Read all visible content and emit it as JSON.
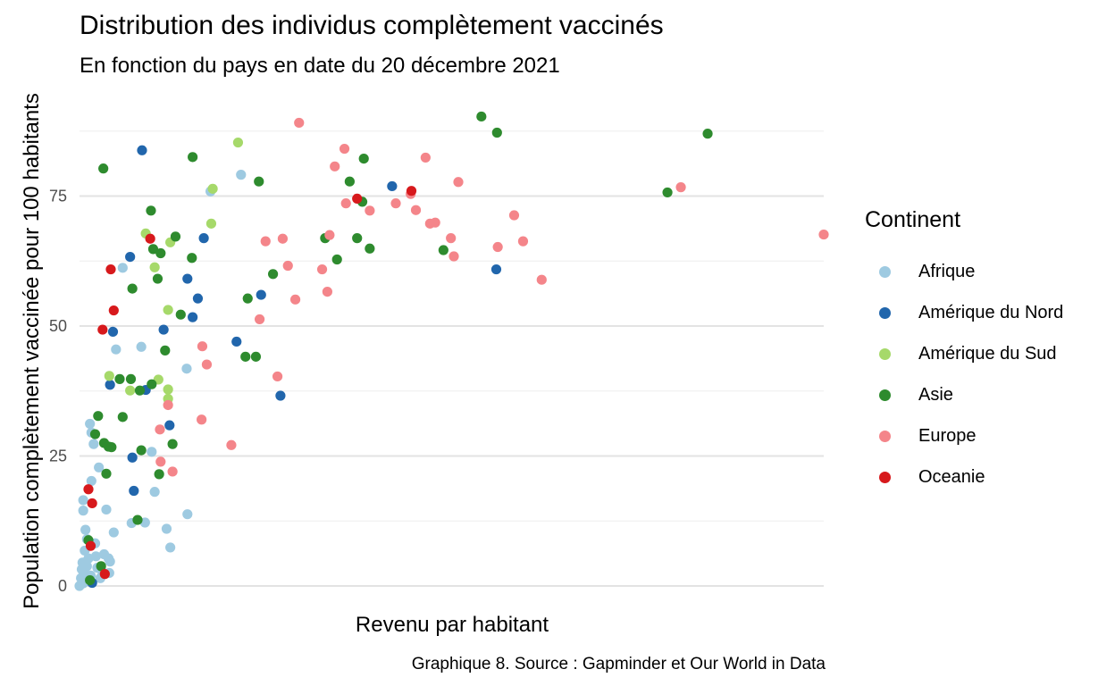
{
  "chart_data": {
    "type": "scatter",
    "title": "Distribution des individus complètement vaccinés",
    "subtitle": "En fonction du pays en date du 20 décembre 2021",
    "xlabel": "Revenu par habitant",
    "ylabel": "Population complètement vaccinée pour 100 habitants",
    "caption": "Graphique 8. Source : Gapminder et Our World in Data",
    "legend_title": "Continent",
    "legend_position": "right",
    "grid": true,
    "x_ticks_shown": false,
    "ylim": [
      0,
      92
    ],
    "y_ticks": [
      0,
      25,
      50,
      75
    ],
    "xlim": [
      0,
      100
    ],
    "series": [
      {
        "name": "Afrique",
        "color": "#9ecae1",
        "points": [
          [
            0,
            0
          ],
          [
            0.2,
            1.5
          ],
          [
            0.3,
            3.2
          ],
          [
            0.4,
            4.5
          ],
          [
            0.5,
            0.5
          ],
          [
            0.6,
            2.5
          ],
          [
            0.7,
            6.8
          ],
          [
            0.8,
            1.0
          ],
          [
            1.0,
            3.8
          ],
          [
            1.2,
            1.5
          ],
          [
            0.5,
            16.5
          ],
          [
            0.5,
            14.5
          ],
          [
            0.8,
            10.8
          ],
          [
            1,
            9
          ],
          [
            1.2,
            5.3
          ],
          [
            1.5,
            2
          ],
          [
            1.4,
            31.2
          ],
          [
            1.6,
            29.5
          ],
          [
            1.9,
            27.3
          ],
          [
            1.6,
            20.2
          ],
          [
            2.1,
            8.2
          ],
          [
            2.2,
            5.7
          ],
          [
            2.4,
            3.5
          ],
          [
            2.6,
            22.8
          ],
          [
            2.8,
            1.5
          ],
          [
            3.1,
            2.6
          ],
          [
            3.3,
            6.1
          ],
          [
            3.6,
            14.7
          ],
          [
            3.9,
            5.3
          ],
          [
            4.0,
            2.5
          ],
          [
            4.1,
            4.7
          ],
          [
            4.6,
            10.3
          ],
          [
            4.9,
            45.5
          ],
          [
            5.8,
            61.2
          ],
          [
            7.0,
            12.1
          ],
          [
            8.3,
            46.0
          ],
          [
            8.8,
            12.2
          ],
          [
            9.7,
            25.8
          ],
          [
            10.1,
            18.1
          ],
          [
            11.7,
            11.0
          ],
          [
            12.2,
            7.4
          ],
          [
            14.4,
            41.8
          ],
          [
            14.5,
            13.8
          ],
          [
            17.6,
            75.9
          ],
          [
            21.7,
            79.1
          ]
        ]
      },
      {
        "name": "Amérique du Nord",
        "color": "#2166ac",
        "points": [
          [
            1.7,
            0.6
          ],
          [
            4.1,
            38.7
          ],
          [
            4.5,
            48.9
          ],
          [
            6.8,
            63.3
          ],
          [
            7.1,
            24.7
          ],
          [
            7.3,
            18.3
          ],
          [
            8.4,
            83.8
          ],
          [
            8.9,
            37.7
          ],
          [
            11.3,
            49.3
          ],
          [
            12.1,
            30.9
          ],
          [
            14.5,
            59.1
          ],
          [
            15.2,
            51.7
          ],
          [
            15.9,
            55.3
          ],
          [
            16.7,
            66.9
          ],
          [
            21.1,
            47.0
          ],
          [
            24.4,
            56.0
          ],
          [
            27.0,
            36.6
          ],
          [
            42.0,
            76.9
          ],
          [
            56.0,
            60.9
          ]
        ]
      },
      {
        "name": "Amérique du Sud",
        "color": "#a6d96a",
        "points": [
          [
            4.0,
            40.4
          ],
          [
            6.8,
            37.6
          ],
          [
            8.9,
            67.8
          ],
          [
            10.1,
            61.3
          ],
          [
            10.6,
            39.7
          ],
          [
            11.9,
            53.1
          ],
          [
            11.9,
            37.8
          ],
          [
            11.9,
            36.0
          ],
          [
            12.2,
            66.1
          ],
          [
            17.7,
            69.7
          ],
          [
            17.9,
            76.4
          ],
          [
            21.3,
            85.3
          ]
        ]
      },
      {
        "name": "Asie",
        "color": "#2e8b2e",
        "points": [
          [
            1.2,
            8.8
          ],
          [
            1.4,
            1.1
          ],
          [
            2.1,
            29.2
          ],
          [
            2.5,
            32.7
          ],
          [
            2.9,
            3.8
          ],
          [
            3.2,
            80.3
          ],
          [
            3.3,
            27.5
          ],
          [
            3.6,
            21.6
          ],
          [
            3.9,
            26.8
          ],
          [
            4.3,
            26.7
          ],
          [
            5.4,
            39.8
          ],
          [
            5.8,
            32.5
          ],
          [
            6.9,
            39.8
          ],
          [
            7.1,
            57.2
          ],
          [
            7.8,
            12.7
          ],
          [
            8.1,
            37.6
          ],
          [
            8.3,
            26.1
          ],
          [
            9.6,
            72.2
          ],
          [
            9.7,
            38.8
          ],
          [
            9.9,
            64.8
          ],
          [
            10.5,
            59.1
          ],
          [
            10.7,
            21.5
          ],
          [
            10.9,
            64.0
          ],
          [
            11.5,
            45.3
          ],
          [
            12.5,
            27.3
          ],
          [
            12.9,
            67.2
          ],
          [
            13.6,
            52.2
          ],
          [
            15.1,
            63.1
          ],
          [
            15.2,
            82.5
          ],
          [
            22.3,
            44.1
          ],
          [
            22.6,
            55.3
          ],
          [
            23.7,
            44.1
          ],
          [
            24.1,
            77.8
          ],
          [
            26.0,
            60.0
          ],
          [
            33.0,
            66.9
          ],
          [
            34.6,
            62.8
          ],
          [
            36.3,
            77.8
          ],
          [
            37.3,
            66.9
          ],
          [
            38.0,
            73.9
          ],
          [
            38.2,
            82.2
          ],
          [
            39.0,
            64.9
          ],
          [
            48.9,
            64.6
          ],
          [
            54.0,
            90.3
          ],
          [
            56.1,
            87.2
          ],
          [
            79.0,
            75.7
          ],
          [
            84.4,
            87.0
          ]
        ]
      },
      {
        "name": "Europe",
        "color": "#f4858a",
        "points": [
          [
            10.8,
            30.1
          ],
          [
            10.9,
            23.9
          ],
          [
            11.9,
            34.8
          ],
          [
            12.5,
            22.0
          ],
          [
            16.4,
            32.0
          ],
          [
            16.5,
            46.1
          ],
          [
            17.1,
            42.6
          ],
          [
            20.4,
            27.1
          ],
          [
            24.2,
            51.3
          ],
          [
            25.0,
            66.3
          ],
          [
            26.6,
            40.3
          ],
          [
            27.3,
            66.8
          ],
          [
            28.0,
            61.6
          ],
          [
            29.0,
            55.1
          ],
          [
            29.5,
            89.1
          ],
          [
            32.6,
            60.9
          ],
          [
            33.3,
            56.6
          ],
          [
            33.6,
            67.5
          ],
          [
            34.3,
            80.7
          ],
          [
            35.6,
            84.1
          ],
          [
            35.8,
            73.6
          ],
          [
            39.0,
            72.2
          ],
          [
            42.5,
            73.6
          ],
          [
            44.5,
            75.4
          ],
          [
            45.2,
            72.3
          ],
          [
            46.5,
            82.4
          ],
          [
            47.1,
            69.7
          ],
          [
            47.8,
            69.9
          ],
          [
            49.9,
            66.9
          ],
          [
            50.3,
            63.4
          ],
          [
            50.9,
            77.7
          ],
          [
            56.2,
            65.2
          ],
          [
            58.4,
            71.3
          ],
          [
            59.6,
            66.3
          ],
          [
            62.1,
            58.9
          ],
          [
            80.8,
            76.7
          ],
          [
            100,
            67.6
          ]
        ]
      },
      {
        "name": "Oceanie",
        "color": "#d7191c",
        "points": [
          [
            1.2,
            18.6
          ],
          [
            1.5,
            7.7
          ],
          [
            1.7,
            15.9
          ],
          [
            3.1,
            49.3
          ],
          [
            3.4,
            2.3
          ],
          [
            4.2,
            60.9
          ],
          [
            4.6,
            53.0
          ],
          [
            9.5,
            66.8
          ],
          [
            37.3,
            74.5
          ],
          [
            44.6,
            76.0
          ]
        ]
      }
    ]
  }
}
